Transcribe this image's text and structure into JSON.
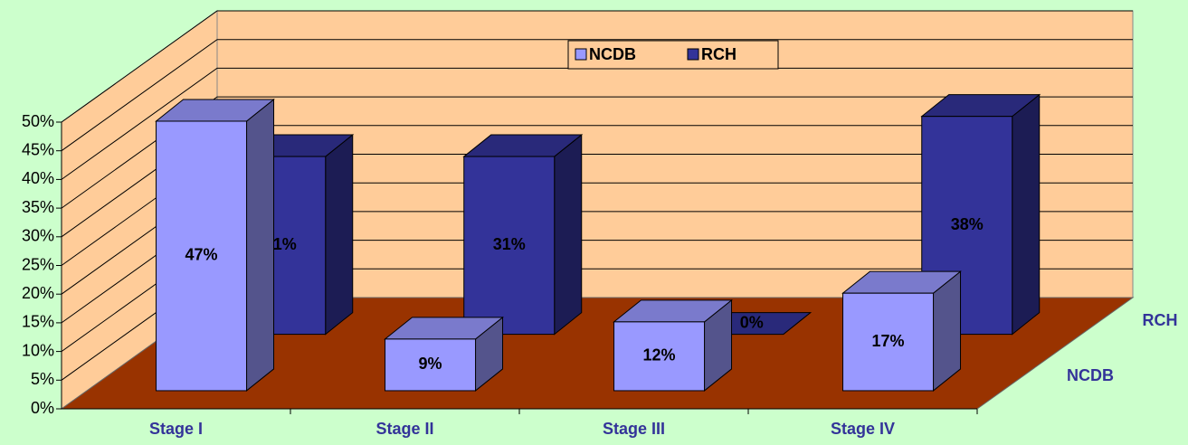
{
  "chart_data": {
    "type": "bar3d",
    "categories": [
      "Stage I",
      "Stage II",
      "Stage III",
      "Stage IV"
    ],
    "series": [
      {
        "name": "NCDB",
        "color": "#9999ff",
        "values": [
          47,
          9,
          12,
          17
        ],
        "value_labels": [
          "47%",
          "9%",
          "12%",
          "17%"
        ]
      },
      {
        "name": "RCH",
        "color": "#333399",
        "values": [
          31,
          31,
          0,
          38
        ],
        "value_labels": [
          "31%",
          "31%",
          "0%",
          "38%"
        ]
      }
    ],
    "ylim": [
      0,
      50
    ],
    "yticks": [
      {
        "value": 0,
        "label": "0%"
      },
      {
        "value": 5,
        "label": "5%"
      },
      {
        "value": 10,
        "label": "10%"
      },
      {
        "value": 15,
        "label": "15%"
      },
      {
        "value": 20,
        "label": "20%"
      },
      {
        "value": 25,
        "label": "25%"
      },
      {
        "value": 30,
        "label": "30%"
      },
      {
        "value": 35,
        "label": "35%"
      },
      {
        "value": 40,
        "label": "40%"
      },
      {
        "value": 45,
        "label": "45%"
      },
      {
        "value": 50,
        "label": "50%"
      }
    ],
    "grid": true
  }
}
